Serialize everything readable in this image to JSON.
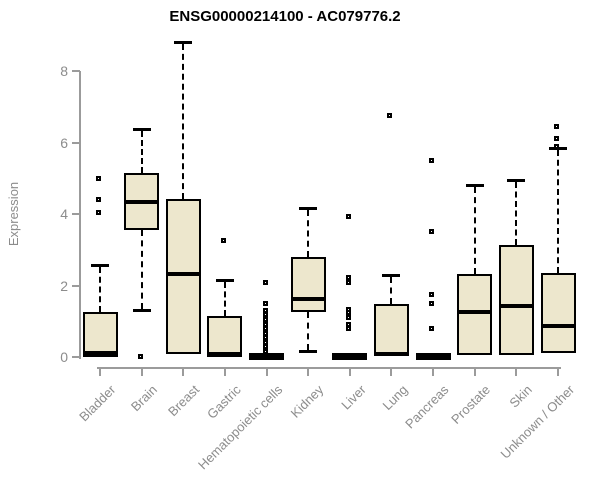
{
  "chart_data": {
    "type": "boxplot",
    "title": "ENSG00000214100 - AC079776.2",
    "ylabel": "Expression",
    "xlabel": "",
    "ylim": [
      0,
      8.8
    ],
    "yticks": [
      0,
      2,
      4,
      6,
      8
    ],
    "grid": false,
    "legend": "none",
    "categories": [
      "Bladder",
      "Brain",
      "Breast",
      "Gastric",
      "Hematopoietic cells",
      "Kidney",
      "Liver",
      "Lung",
      "Pancreas",
      "Prostate",
      "Skin",
      "Unknown / Other"
    ],
    "boxes": [
      {
        "category": "Bladder",
        "low": 0,
        "q1": 0,
        "median": 0.1,
        "q3": 1.25,
        "high": 2.57,
        "outliers": [
          4.06,
          4.42,
          5.02
        ],
        "collapsed": false
      },
      {
        "category": "Brain",
        "low": 1.3,
        "q1": 3.55,
        "median": 4.33,
        "q3": 5.15,
        "high": 6.37,
        "outliers": [
          0.03
        ],
        "collapsed": false
      },
      {
        "category": "Breast",
        "low": 0.08,
        "q1": 0.08,
        "median": 2.32,
        "q3": 4.42,
        "high": 8.82,
        "outliers": [],
        "collapsed": false
      },
      {
        "category": "Gastric",
        "low": 0,
        "q1": 0,
        "median": 0.08,
        "q3": 1.14,
        "high": 2.15,
        "outliers": [
          3.27
        ],
        "collapsed": false
      },
      {
        "category": "Hematopoietic cells",
        "low": 0,
        "q1": 0,
        "median": 0.04,
        "q3": 0.08,
        "high": 0.08,
        "outliers": [
          0.18,
          0.3,
          0.42,
          0.55,
          0.67,
          0.8,
          0.93,
          1.06,
          1.19,
          1.31,
          1.52,
          2.1
        ],
        "collapsed": true
      },
      {
        "category": "Kidney",
        "low": 0.15,
        "q1": 1.25,
        "median": 1.62,
        "q3": 2.8,
        "high": 4.18,
        "outliers": [],
        "collapsed": false
      },
      {
        "category": "Liver",
        "low": 0,
        "q1": 0,
        "median": 0.04,
        "q3": 0.08,
        "high": 0.08,
        "outliers": [
          0.81,
          0.93,
          1.13,
          1.25,
          1.33,
          2.1,
          2.24,
          3.94
        ],
        "collapsed": true
      },
      {
        "category": "Lung",
        "low": 0.02,
        "q1": 0.02,
        "median": 0.08,
        "q3": 1.47,
        "high": 2.29,
        "outliers": [
          6.77
        ],
        "collapsed": false
      },
      {
        "category": "Pancreas",
        "low": 0,
        "q1": 0,
        "median": 0.04,
        "q3": 0.08,
        "high": 0.08,
        "outliers": [
          0.81,
          1.5,
          1.76,
          3.52,
          5.51
        ],
        "collapsed": true
      },
      {
        "category": "Prostate",
        "low": 0.05,
        "q1": 0.05,
        "median": 1.25,
        "q3": 2.31,
        "high": 4.81,
        "outliers": [],
        "collapsed": false
      },
      {
        "category": "Skin",
        "low": 0.05,
        "q1": 0.05,
        "median": 1.44,
        "q3": 3.13,
        "high": 4.95,
        "outliers": [],
        "collapsed": false
      },
      {
        "category": "Unknown / Other",
        "low": 0.1,
        "q1": 0.1,
        "median": 0.86,
        "q3": 2.35,
        "high": 5.84,
        "outliers": [
          5.91,
          6.12,
          6.47
        ],
        "collapsed": false
      }
    ],
    "colors": {
      "box_fill": "#ede7cd",
      "box_border": "#000000",
      "median": "#000000",
      "whisker": "#000000",
      "outlier": "#000000",
      "axis": "#9b9b9b",
      "tick_label": "#8c8c8c",
      "title": "#000000",
      "background": "#ffffff"
    }
  }
}
